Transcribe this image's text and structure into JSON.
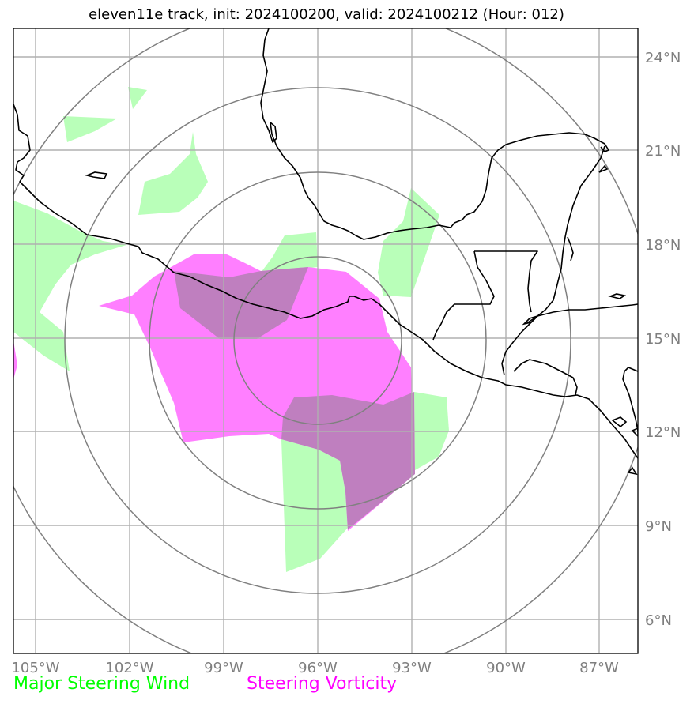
{
  "title": "eleven11e track, init: 2024100200, valid: 2024100212 (Hour: 012)",
  "axes": {
    "lon_ticks": [
      "105°W",
      "102°W",
      "99°W",
      "96°W",
      "93°W",
      "90°W",
      "87°W"
    ],
    "lat_ticks": [
      "24°N",
      "21°N",
      "18°N",
      "15°N",
      "12°N",
      "9°N",
      "6°N"
    ]
  },
  "legend": [
    {
      "label": "Major Steering Wind",
      "color": "#00ff00"
    },
    {
      "label": "Steering Vorticity",
      "color": "#ff00ff"
    }
  ],
  "colors": {
    "steering_wind_fill": "#b9ffb9",
    "vorticity_fill": "#ff7fff",
    "overlap_fill": "#bf7fbf",
    "range_rings": "#808080",
    "gridlines": "#b0b0b0",
    "coastline": "#000000"
  }
}
